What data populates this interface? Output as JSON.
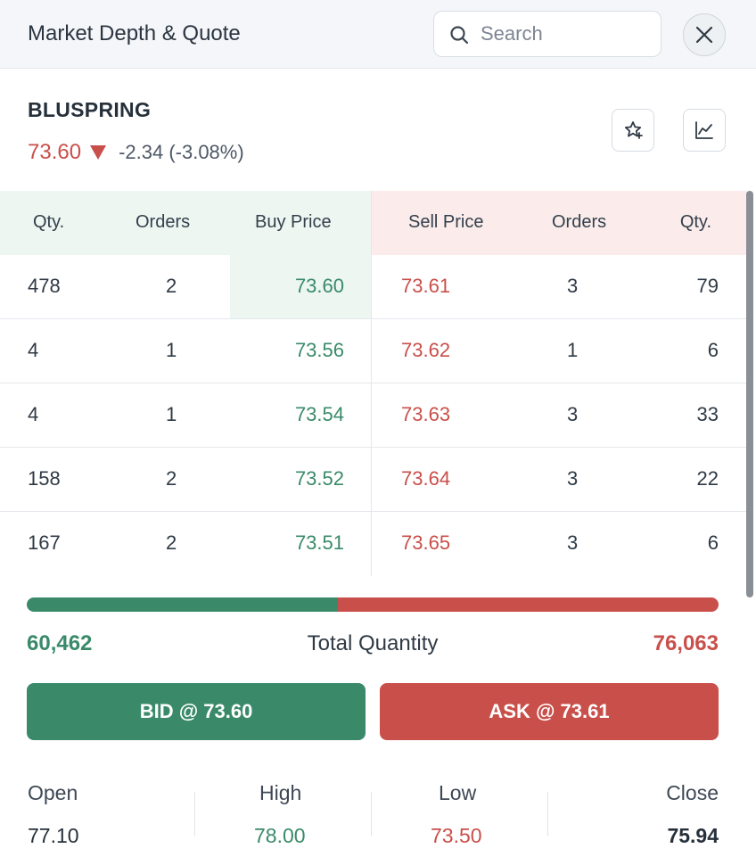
{
  "header": {
    "title": "Market Depth & Quote",
    "search_placeholder": "Search"
  },
  "quote": {
    "symbol": "BLUSPRING",
    "ltp": "73.60",
    "change": "-2.34 (-3.08%)"
  },
  "depth": {
    "buy_headers": [
      "Qty.",
      "Orders",
      "Buy Price"
    ],
    "sell_headers": [
      "Sell Price",
      "Orders",
      "Qty."
    ],
    "rows": [
      {
        "buy_qty": "478",
        "buy_orders": "2",
        "buy_price": "73.60",
        "sell_price": "73.61",
        "sell_orders": "3",
        "sell_qty": "79"
      },
      {
        "buy_qty": "4",
        "buy_orders": "1",
        "buy_price": "73.56",
        "sell_price": "73.62",
        "sell_orders": "1",
        "sell_qty": "6"
      },
      {
        "buy_qty": "4",
        "buy_orders": "1",
        "buy_price": "73.54",
        "sell_price": "73.63",
        "sell_orders": "3",
        "sell_qty": "33"
      },
      {
        "buy_qty": "158",
        "buy_orders": "2",
        "buy_price": "73.52",
        "sell_price": "73.64",
        "sell_orders": "3",
        "sell_qty": "22"
      },
      {
        "buy_qty": "167",
        "buy_orders": "2",
        "buy_price": "73.51",
        "sell_price": "73.65",
        "sell_orders": "3",
        "sell_qty": "6"
      }
    ]
  },
  "totals": {
    "buy_total": "60,462",
    "label": "Total Quantity",
    "sell_total": "76,063",
    "buy_fraction": 0.45
  },
  "actions": {
    "bid_label": "BID @ 73.60",
    "ask_label": "ASK @ 73.61"
  },
  "ohlc": [
    {
      "label": "Open",
      "value": "77.10"
    },
    {
      "label": "High",
      "value": "78.00"
    },
    {
      "label": "Low",
      "value": "73.50"
    },
    {
      "label": "Close",
      "value": "75.94"
    }
  ],
  "colors": {
    "buy": "#3a8a6a",
    "sell": "#c94f4a",
    "buy_bg": "#edf6f0",
    "sell_bg": "#fbeceb"
  },
  "icons": [
    "search-icon",
    "close-icon",
    "star-plus-icon",
    "line-chart-icon",
    "down-arrow-icon"
  ]
}
